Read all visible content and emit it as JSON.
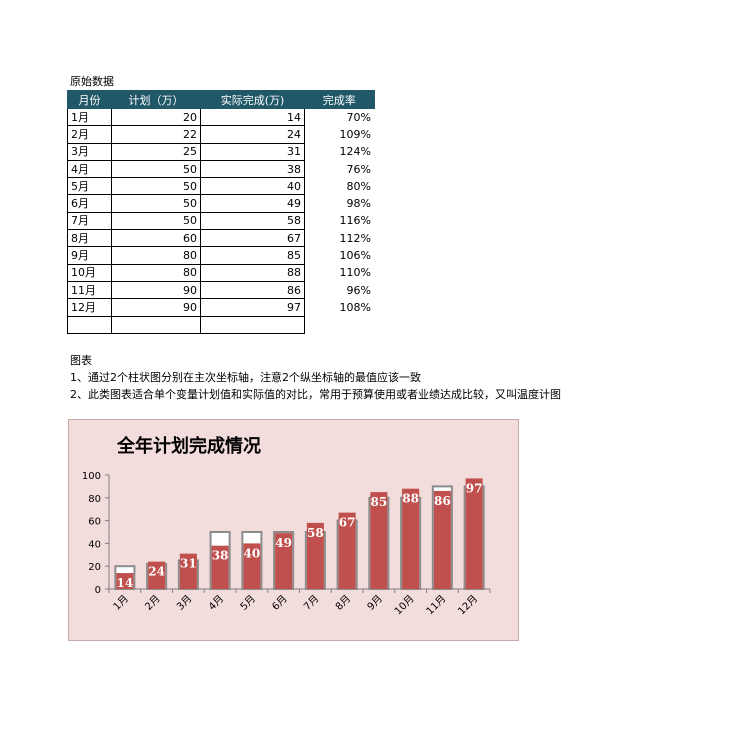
{
  "raw_data_title": "原始数据",
  "table": {
    "headers": [
      "月份",
      "计划（万）",
      "实际完成(万)",
      "完成率"
    ],
    "rows": [
      [
        "1月",
        "20",
        "14",
        "70%"
      ],
      [
        "2月",
        "22",
        "24",
        "109%"
      ],
      [
        "3月",
        "25",
        "31",
        "124%"
      ],
      [
        "4月",
        "50",
        "38",
        "76%"
      ],
      [
        "5月",
        "50",
        "40",
        "80%"
      ],
      [
        "6月",
        "50",
        "49",
        "98%"
      ],
      [
        "7月",
        "50",
        "58",
        "116%"
      ],
      [
        "8月",
        "60",
        "67",
        "112%"
      ],
      [
        "9月",
        "80",
        "85",
        "106%"
      ],
      [
        "10月",
        "80",
        "88",
        "110%"
      ],
      [
        "11月",
        "90",
        "86",
        "96%"
      ],
      [
        "12月",
        "90",
        "97",
        "108%"
      ]
    ]
  },
  "notes": {
    "heading": "图表",
    "line1": "1、通过2个柱状图分别在主次坐标轴，注意2个纵坐标轴的最值应该一致",
    "line2": "2、此类图表适合单个变量计划值和实际值的对比，常用于预算使用或者业绩达成比较，又叫温度计图"
  },
  "colors": {
    "header_bg": "#215868",
    "chart_bg": "#f3dcdc",
    "actual_bar": "#c0504d",
    "plan_outline": "#8c8c8c"
  },
  "chart_data": {
    "type": "bar",
    "title": "全年计划完成情况",
    "categories": [
      "1月",
      "2月",
      "3月",
      "4月",
      "5月",
      "6月",
      "7月",
      "8月",
      "9月",
      "10月",
      "11月",
      "12月"
    ],
    "series": [
      {
        "values": [
          20,
          22,
          25,
          50,
          50,
          50,
          50,
          60,
          80,
          80,
          90,
          90
        ]
      },
      {
        "values": [
          14,
          24,
          31,
          38,
          40,
          49,
          58,
          67,
          85,
          88,
          86,
          97
        ]
      }
    ],
    "data_labels": [
      "14",
      "24",
      "31",
      "38",
      "40",
      "49",
      "58",
      "67",
      "85",
      "88",
      "86",
      "97"
    ],
    "ylim": [
      0,
      100
    ],
    "yticks": [
      "0",
      "20",
      "40",
      "60",
      "80",
      "100"
    ],
    "grid": false
  }
}
